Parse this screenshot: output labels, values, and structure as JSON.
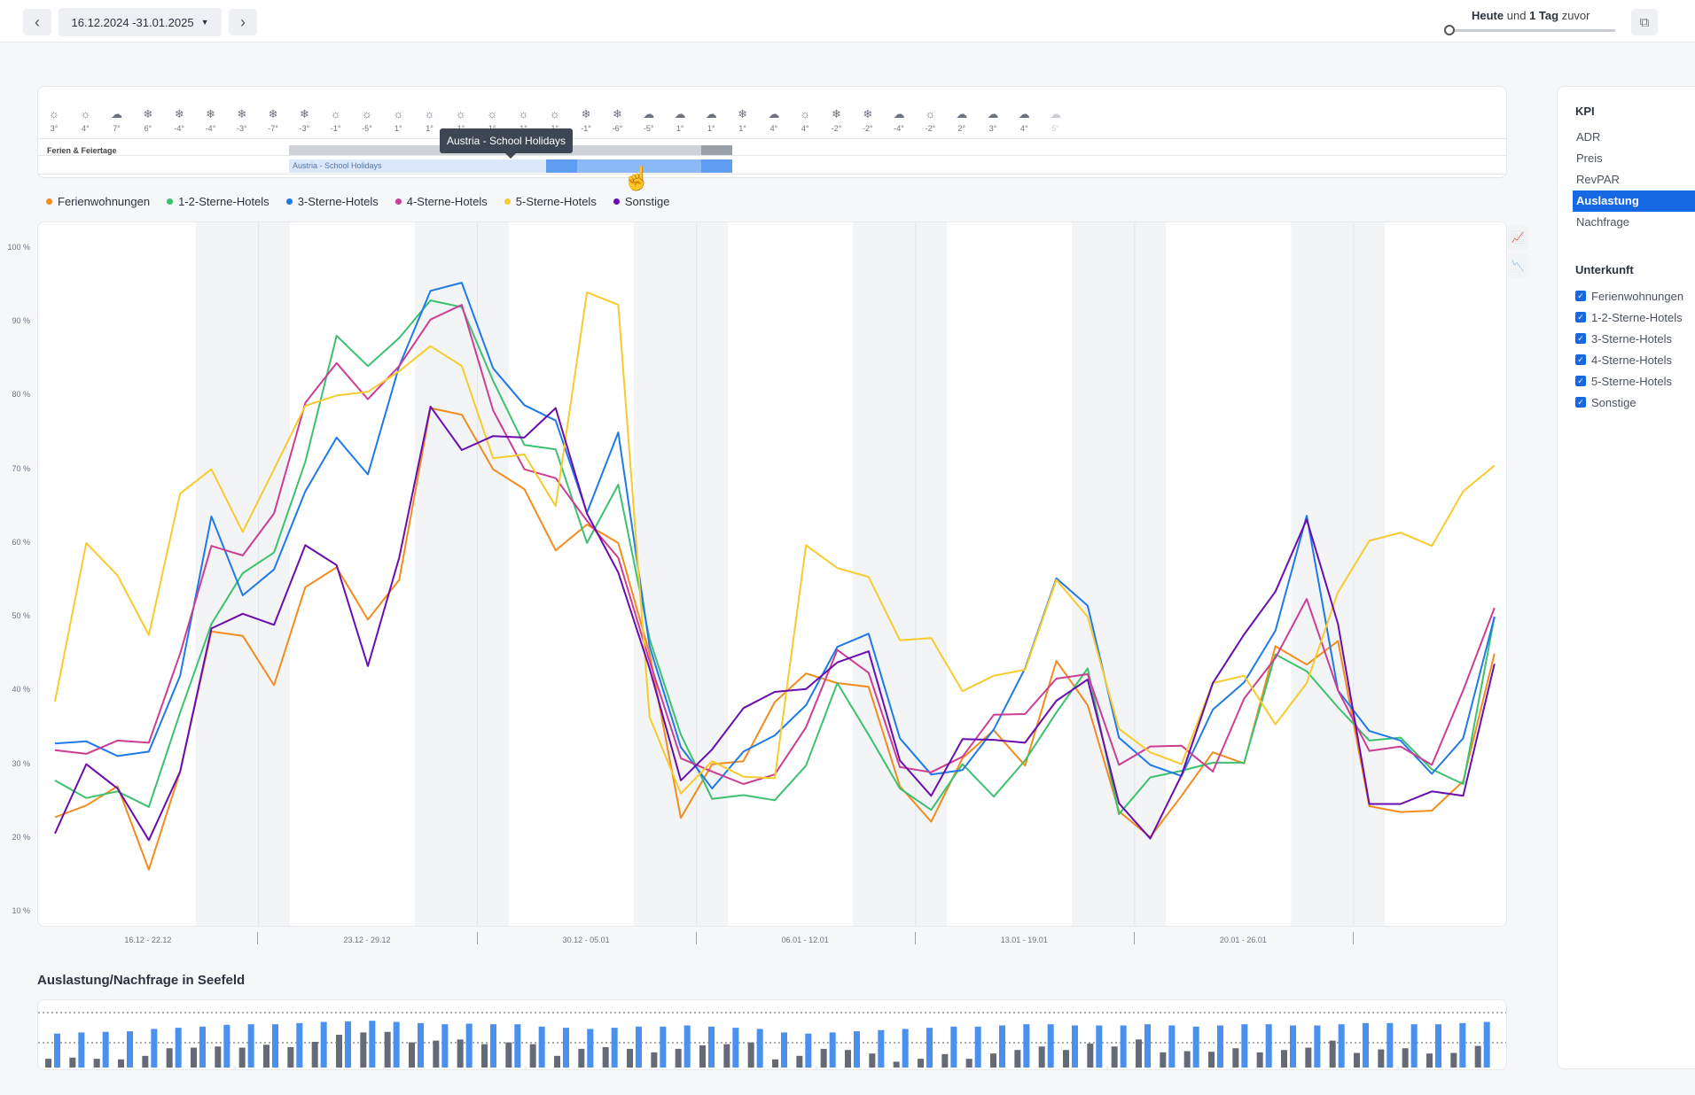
{
  "topbar": {
    "prev_icon": "chevron-left-icon",
    "next_icon": "chevron-right-icon",
    "date_range": "16.12.2024 -31.01.2025",
    "comparison_bold1": "Heute",
    "comparison_mid": "und",
    "comparison_bold2": "1 Tag",
    "comparison_end": "zuvor",
    "export_icon": "external-link-icon"
  },
  "weather": {
    "holiday_row_label": "Ferien & Feiertage",
    "holiday_bar_label": "Austria - School Holidays",
    "tooltip": "Austria - School Holidays",
    "days": [
      {
        "icon": "sun",
        "temp": "3°"
      },
      {
        "icon": "sun",
        "temp": "4°"
      },
      {
        "icon": "cloud",
        "temp": "7°"
      },
      {
        "icon": "snow",
        "temp": "6°"
      },
      {
        "icon": "snow",
        "temp": "-4°"
      },
      {
        "icon": "snow",
        "temp": "-4°"
      },
      {
        "icon": "snow",
        "temp": "-3°"
      },
      {
        "icon": "snow",
        "temp": "-7°"
      },
      {
        "icon": "snow",
        "temp": "-3°"
      },
      {
        "icon": "sun",
        "temp": "-1°"
      },
      {
        "icon": "sun",
        "temp": "-5°"
      },
      {
        "icon": "sun",
        "temp": "1°"
      },
      {
        "icon": "sun",
        "temp": "1°"
      },
      {
        "icon": "sun",
        "temp": "1°"
      },
      {
        "icon": "sun",
        "temp": "1°"
      },
      {
        "icon": "sun",
        "temp": "1°"
      },
      {
        "icon": "sun",
        "temp": "1°"
      },
      {
        "icon": "snow",
        "temp": "-1°"
      },
      {
        "icon": "snow",
        "temp": "-6°"
      },
      {
        "icon": "cloud",
        "temp": "-5°"
      },
      {
        "icon": "cloud",
        "temp": "1°"
      },
      {
        "icon": "cloud",
        "temp": "1°"
      },
      {
        "icon": "snow",
        "temp": "1°"
      },
      {
        "icon": "cloud",
        "temp": "4°"
      },
      {
        "icon": "sun",
        "temp": "4°"
      },
      {
        "icon": "snow",
        "temp": "-2°"
      },
      {
        "icon": "snow",
        "temp": "-2°"
      },
      {
        "icon": "cloud",
        "temp": "-4°"
      },
      {
        "icon": "sun",
        "temp": "-2°"
      },
      {
        "icon": "cloud",
        "temp": "2°"
      },
      {
        "icon": "cloud",
        "temp": "3°"
      },
      {
        "icon": "cloud",
        "temp": "4°"
      },
      {
        "icon": "cloud",
        "temp": "5°",
        "faded": true
      }
    ]
  },
  "legend": [
    {
      "name": "Ferienwohnungen",
      "color": "#f28c1e"
    },
    {
      "name": "1-2-Sterne-Hotels",
      "color": "#3cc16f"
    },
    {
      "name": "3-Sterne-Hotels",
      "color": "#1f7ae8"
    },
    {
      "name": "4-Sterne-Hotels",
      "color": "#cc3d94"
    },
    {
      "name": "5-Sterne-Hotels",
      "color": "#f7cb2d"
    },
    {
      "name": "Sonstige",
      "color": "#6a0dad"
    }
  ],
  "chart_data": {
    "type": "line",
    "ylabel": "",
    "y_ticks": [
      "100 %",
      "90 %",
      "80 %",
      "70 %",
      "60 %",
      "50 %",
      "40 %",
      "30 %",
      "20 %",
      "10 %"
    ],
    "ylim": [
      10,
      100
    ],
    "x_week_labels": [
      "16.12 - 22.12",
      "23.12 - 29.12",
      "30.12 - 05.01",
      "06.01 - 12.01",
      "13.01 - 19.01",
      "20.01 - 26.01"
    ],
    "series": [
      {
        "name": "Ferienwohnungen",
        "values": [
          22.8,
          24.4,
          27,
          15.7,
          29,
          48,
          47.4,
          40.7,
          54,
          56.7,
          49.6,
          55,
          78.3,
          77.4,
          70,
          67.3,
          59,
          62.5,
          60,
          45,
          22.7,
          30,
          30.4,
          38.4,
          42.3,
          41,
          40.5,
          27,
          22.2,
          30.8,
          34.6,
          29.8,
          44,
          38,
          23.6,
          20.1,
          25.7,
          31.6,
          30.1,
          46,
          43.5,
          46.7,
          24.3,
          23.5,
          23.7,
          27.7,
          45
        ]
      },
      {
        "name": "1-2-Sterne-Hotels",
        "values": [
          27.8,
          25.4,
          26.3,
          24.2,
          37,
          49,
          55.9,
          58.7,
          71,
          88.1,
          84,
          87.8,
          92.9,
          92,
          82,
          73.3,
          72.7,
          60,
          67.9,
          47,
          34,
          25.3,
          25.8,
          25.1,
          29.8,
          41,
          34,
          26.7,
          23.8,
          30,
          25.6,
          30.5,
          37,
          43,
          23.2,
          28.2,
          29.1,
          30.2,
          30.2,
          44.9,
          42.6,
          37.7,
          33.2,
          33.6,
          29.3,
          27.3,
          50
        ]
      },
      {
        "name": "3-Sterne-Hotels",
        "values": [
          32.8,
          33.1,
          31.1,
          31.7,
          42,
          63.6,
          52.9,
          56.4,
          67,
          74.3,
          69.3,
          84,
          94.2,
          95.3,
          83.7,
          78.7,
          76.6,
          64.1,
          75,
          46,
          32.3,
          26.7,
          31.7,
          33.9,
          38,
          45.9,
          47.7,
          33.5,
          28.6,
          29.2,
          34.7,
          43,
          55.2,
          51.5,
          33.6,
          29.9,
          28.4,
          37.4,
          41.1,
          48.1,
          63.7,
          40,
          34.5,
          33.2,
          28.7,
          33.5,
          50
        ]
      },
      {
        "name": "4-Sterne-Hotels",
        "values": [
          31.9,
          31.4,
          33.2,
          32.9,
          45,
          59.6,
          58.3,
          64,
          79,
          84.4,
          79.5,
          84,
          90.3,
          92.3,
          78,
          70,
          68.8,
          63,
          58,
          44,
          30.8,
          29,
          27.3,
          28.6,
          35,
          45.5,
          42.4,
          29.6,
          28.9,
          31,
          36.7,
          36.8,
          41.6,
          42.2,
          29.9,
          32.4,
          32.5,
          29,
          38.9,
          44.4,
          52.4,
          40,
          31.8,
          32.4,
          29.9,
          40,
          51.2
        ]
      },
      {
        "name": "5-Sterne-Hotels",
        "values": [
          38.5,
          60,
          55.6,
          47.5,
          66.7,
          70,
          61.5,
          70,
          78.6,
          80,
          80.5,
          83.3,
          86.7,
          84,
          71.5,
          72,
          65,
          94,
          92.3,
          36.4,
          26,
          30.4,
          28.3,
          28.1,
          59.7,
          56.6,
          55.4,
          46.8,
          47.1,
          39.9,
          42,
          42.8,
          55,
          50,
          34.8,
          31.6,
          30,
          41,
          42,
          35.4,
          41,
          53.3,
          60.3,
          61.4,
          59.6,
          67,
          70.5
        ]
      },
      {
        "name": "Sonstige",
        "values": [
          20.6,
          30,
          26.7,
          19.7,
          29,
          48.4,
          50.4,
          48.9,
          59.7,
          57,
          43.3,
          58,
          78.5,
          72.6,
          74.5,
          74.3,
          78.3,
          64,
          56,
          43,
          27.8,
          32,
          37.6,
          39.8,
          40.2,
          43.8,
          45.3,
          30.5,
          25.7,
          33.4,
          33.3,
          32.9,
          38.6,
          41.5,
          24.7,
          19.9,
          28.5,
          41,
          47.6,
          53.4,
          63.2,
          49,
          24.6,
          24.6,
          26.3,
          25.7,
          43.6
        ]
      }
    ]
  },
  "chart_tools": {
    "line_icon": "line-chart-icon",
    "area_icon": "area-chart-icon"
  },
  "bars": {
    "title": "Auslastung/Nachfrage in Seefeld",
    "occupancy": [
      15,
      17,
      15,
      14,
      20,
      33,
      34,
      36,
      34,
      39,
      35,
      44,
      56,
      60,
      61,
      43,
      46,
      48,
      40,
      43,
      40,
      20,
      32,
      35,
      32,
      26,
      32,
      38,
      40,
      43,
      14,
      20,
      32,
      30,
      24,
      10,
      15,
      23,
      15,
      24,
      30,
      36,
      30,
      41,
      36,
      48,
      26,
      28,
      27,
      33,
      26,
      30,
      34,
      46,
      25,
      31,
      33,
      24,
      25,
      37
    ],
    "demand": [
      58,
      60,
      61,
      62,
      66,
      68,
      70,
      73,
      74,
      74,
      76,
      78,
      79,
      80,
      78,
      76,
      74,
      75,
      74,
      74,
      70,
      68,
      66,
      68,
      70,
      70,
      72,
      70,
      68,
      66,
      60,
      58,
      60,
      62,
      64,
      66,
      68,
      70,
      70,
      72,
      74,
      74,
      72,
      72,
      72,
      74,
      72,
      70,
      72,
      74,
      74,
      72,
      72,
      74,
      76,
      76,
      74,
      74,
      76,
      78
    ]
  },
  "sidebar": {
    "kpi_title": "KPI",
    "kpis": [
      "ADR",
      "Preis",
      "RevPAR",
      "Auslastung",
      "Nachfrage"
    ],
    "active_kpi": "Auslastung",
    "unterkunft_title": "Unterkunft",
    "unterkunft": [
      "Ferienwohnungen",
      "1-2-Sterne-Hotels",
      "3-Sterne-Hotels",
      "4-Sterne-Hotels",
      "5-Sterne-Hotels",
      "Sonstige"
    ]
  }
}
